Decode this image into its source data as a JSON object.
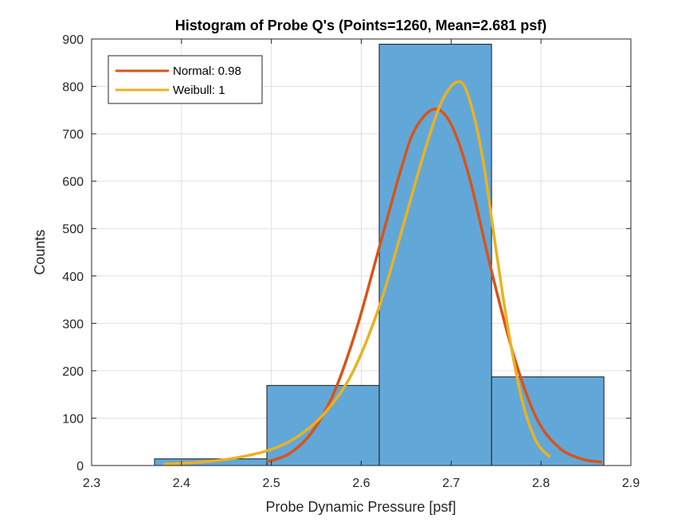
{
  "chart_data": {
    "type": "bar",
    "title": "Histogram of Probe Q's (Points=1260, Mean=2.681 psf)",
    "xlabel": "Probe Dynamic Pressure [psf]",
    "ylabel": "Counts",
    "xlim": [
      2.3,
      2.9
    ],
    "ylim": [
      0,
      900
    ],
    "xticks": [
      "2.3",
      "2.4",
      "2.5",
      "2.6",
      "2.7",
      "2.8",
      "2.9"
    ],
    "yticks": [
      "0",
      "100",
      "200",
      "300",
      "400",
      "500",
      "600",
      "700",
      "800",
      "900"
    ],
    "grid": true,
    "legend_position": "top-left",
    "bins": [
      {
        "start": 2.37,
        "end": 2.495,
        "count": 14
      },
      {
        "start": 2.495,
        "end": 2.62,
        "count": 169
      },
      {
        "start": 2.62,
        "end": 2.745,
        "count": 889
      },
      {
        "start": 2.745,
        "end": 2.87,
        "count": 187
      }
    ],
    "bar_color": "#61a8d8",
    "series": [
      {
        "name": "Normal: 0.98",
        "color": "#d95319",
        "x": [
          2.495,
          2.52,
          2.545,
          2.57,
          2.595,
          2.62,
          2.645,
          2.66,
          2.681,
          2.7,
          2.72,
          2.745,
          2.77,
          2.795,
          2.82,
          2.845,
          2.868
        ],
        "y": [
          8,
          25,
          70,
          155,
          290,
          460,
          630,
          710,
          752,
          720,
          610,
          410,
          230,
          100,
          38,
          14,
          7
        ]
      },
      {
        "name": "Weibull: 1",
        "color": "#edb120",
        "x": [
          2.38,
          2.42,
          2.46,
          2.5,
          2.53,
          2.56,
          2.59,
          2.62,
          2.645,
          2.67,
          2.69,
          2.708,
          2.72,
          2.735,
          2.75,
          2.765,
          2.78,
          2.795,
          2.81
        ],
        "y": [
          3,
          7,
          16,
          34,
          62,
          112,
          195,
          335,
          495,
          660,
          770,
          810,
          775,
          650,
          455,
          270,
          130,
          50,
          18
        ]
      }
    ]
  }
}
